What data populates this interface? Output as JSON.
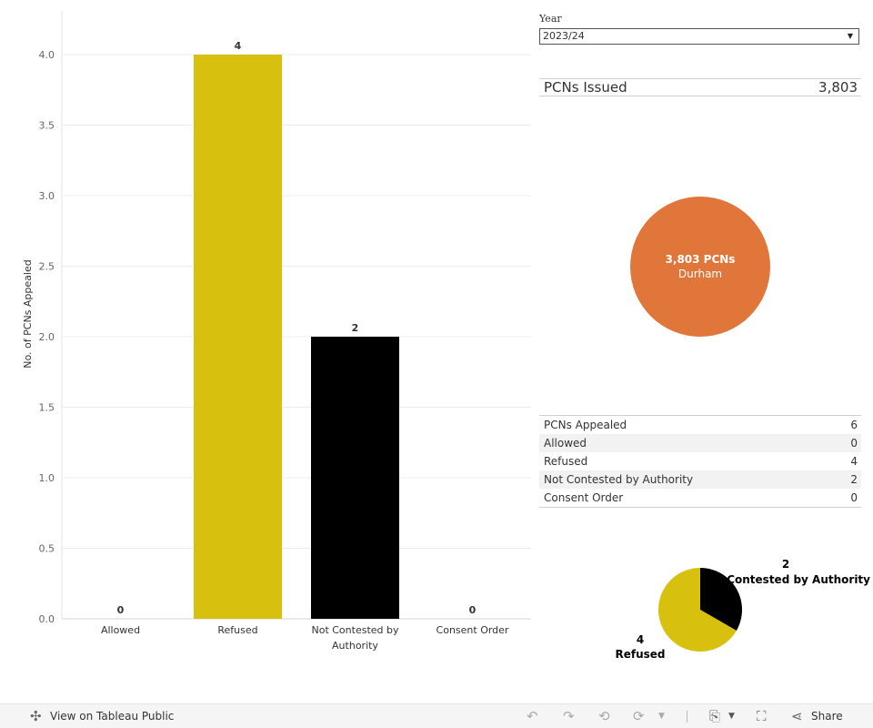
{
  "chart_data": [
    {
      "type": "bar",
      "categories": [
        "Allowed",
        "Refused",
        "Not Contested by Authority",
        "Consent Order"
      ],
      "values": [
        0,
        4,
        2,
        0
      ],
      "colors": [
        "#d8c00f",
        "#d8c00f",
        "#000000",
        "#d8c00f"
      ],
      "ylabel": "No. of PCNs Appealed",
      "ylim": [
        0,
        4.2
      ],
      "yticks": [
        "0.0",
        "0.5",
        "1.0",
        "1.5",
        "2.0",
        "2.5",
        "3.0",
        "3.5",
        "4.0"
      ],
      "data_labels": [
        "0",
        "4",
        "2",
        "0"
      ],
      "grid": true
    },
    {
      "type": "pie",
      "labels": [
        "Not Contested by Authority",
        "Refused"
      ],
      "values": [
        2,
        4
      ],
      "colors": [
        "#000000",
        "#d8c00f"
      ]
    }
  ],
  "filter": {
    "label": "Year",
    "selected": "2023/24"
  },
  "issued": {
    "label": "PCNs Issued",
    "value": "3,803"
  },
  "circle": {
    "title": "3,803 PCNs",
    "subtitle": "Durham",
    "color": "#e1763a"
  },
  "summary": [
    {
      "label": "PCNs Appealed",
      "value": "6"
    },
    {
      "label": "Allowed",
      "value": "0"
    },
    {
      "label": "Refused",
      "value": "4"
    },
    {
      "label": "Not Contested by Authority",
      "value": "2"
    },
    {
      "label": "Consent Order",
      "value": "0"
    }
  ],
  "toolbar": {
    "view_label": "View on Tableau Public",
    "share_label": "Share",
    "icons": [
      "tableau-icon",
      "undo-icon",
      "redo-icon",
      "revert-icon",
      "refresh-icon",
      "download-icon",
      "fullscreen-icon",
      "share-icon"
    ]
  }
}
